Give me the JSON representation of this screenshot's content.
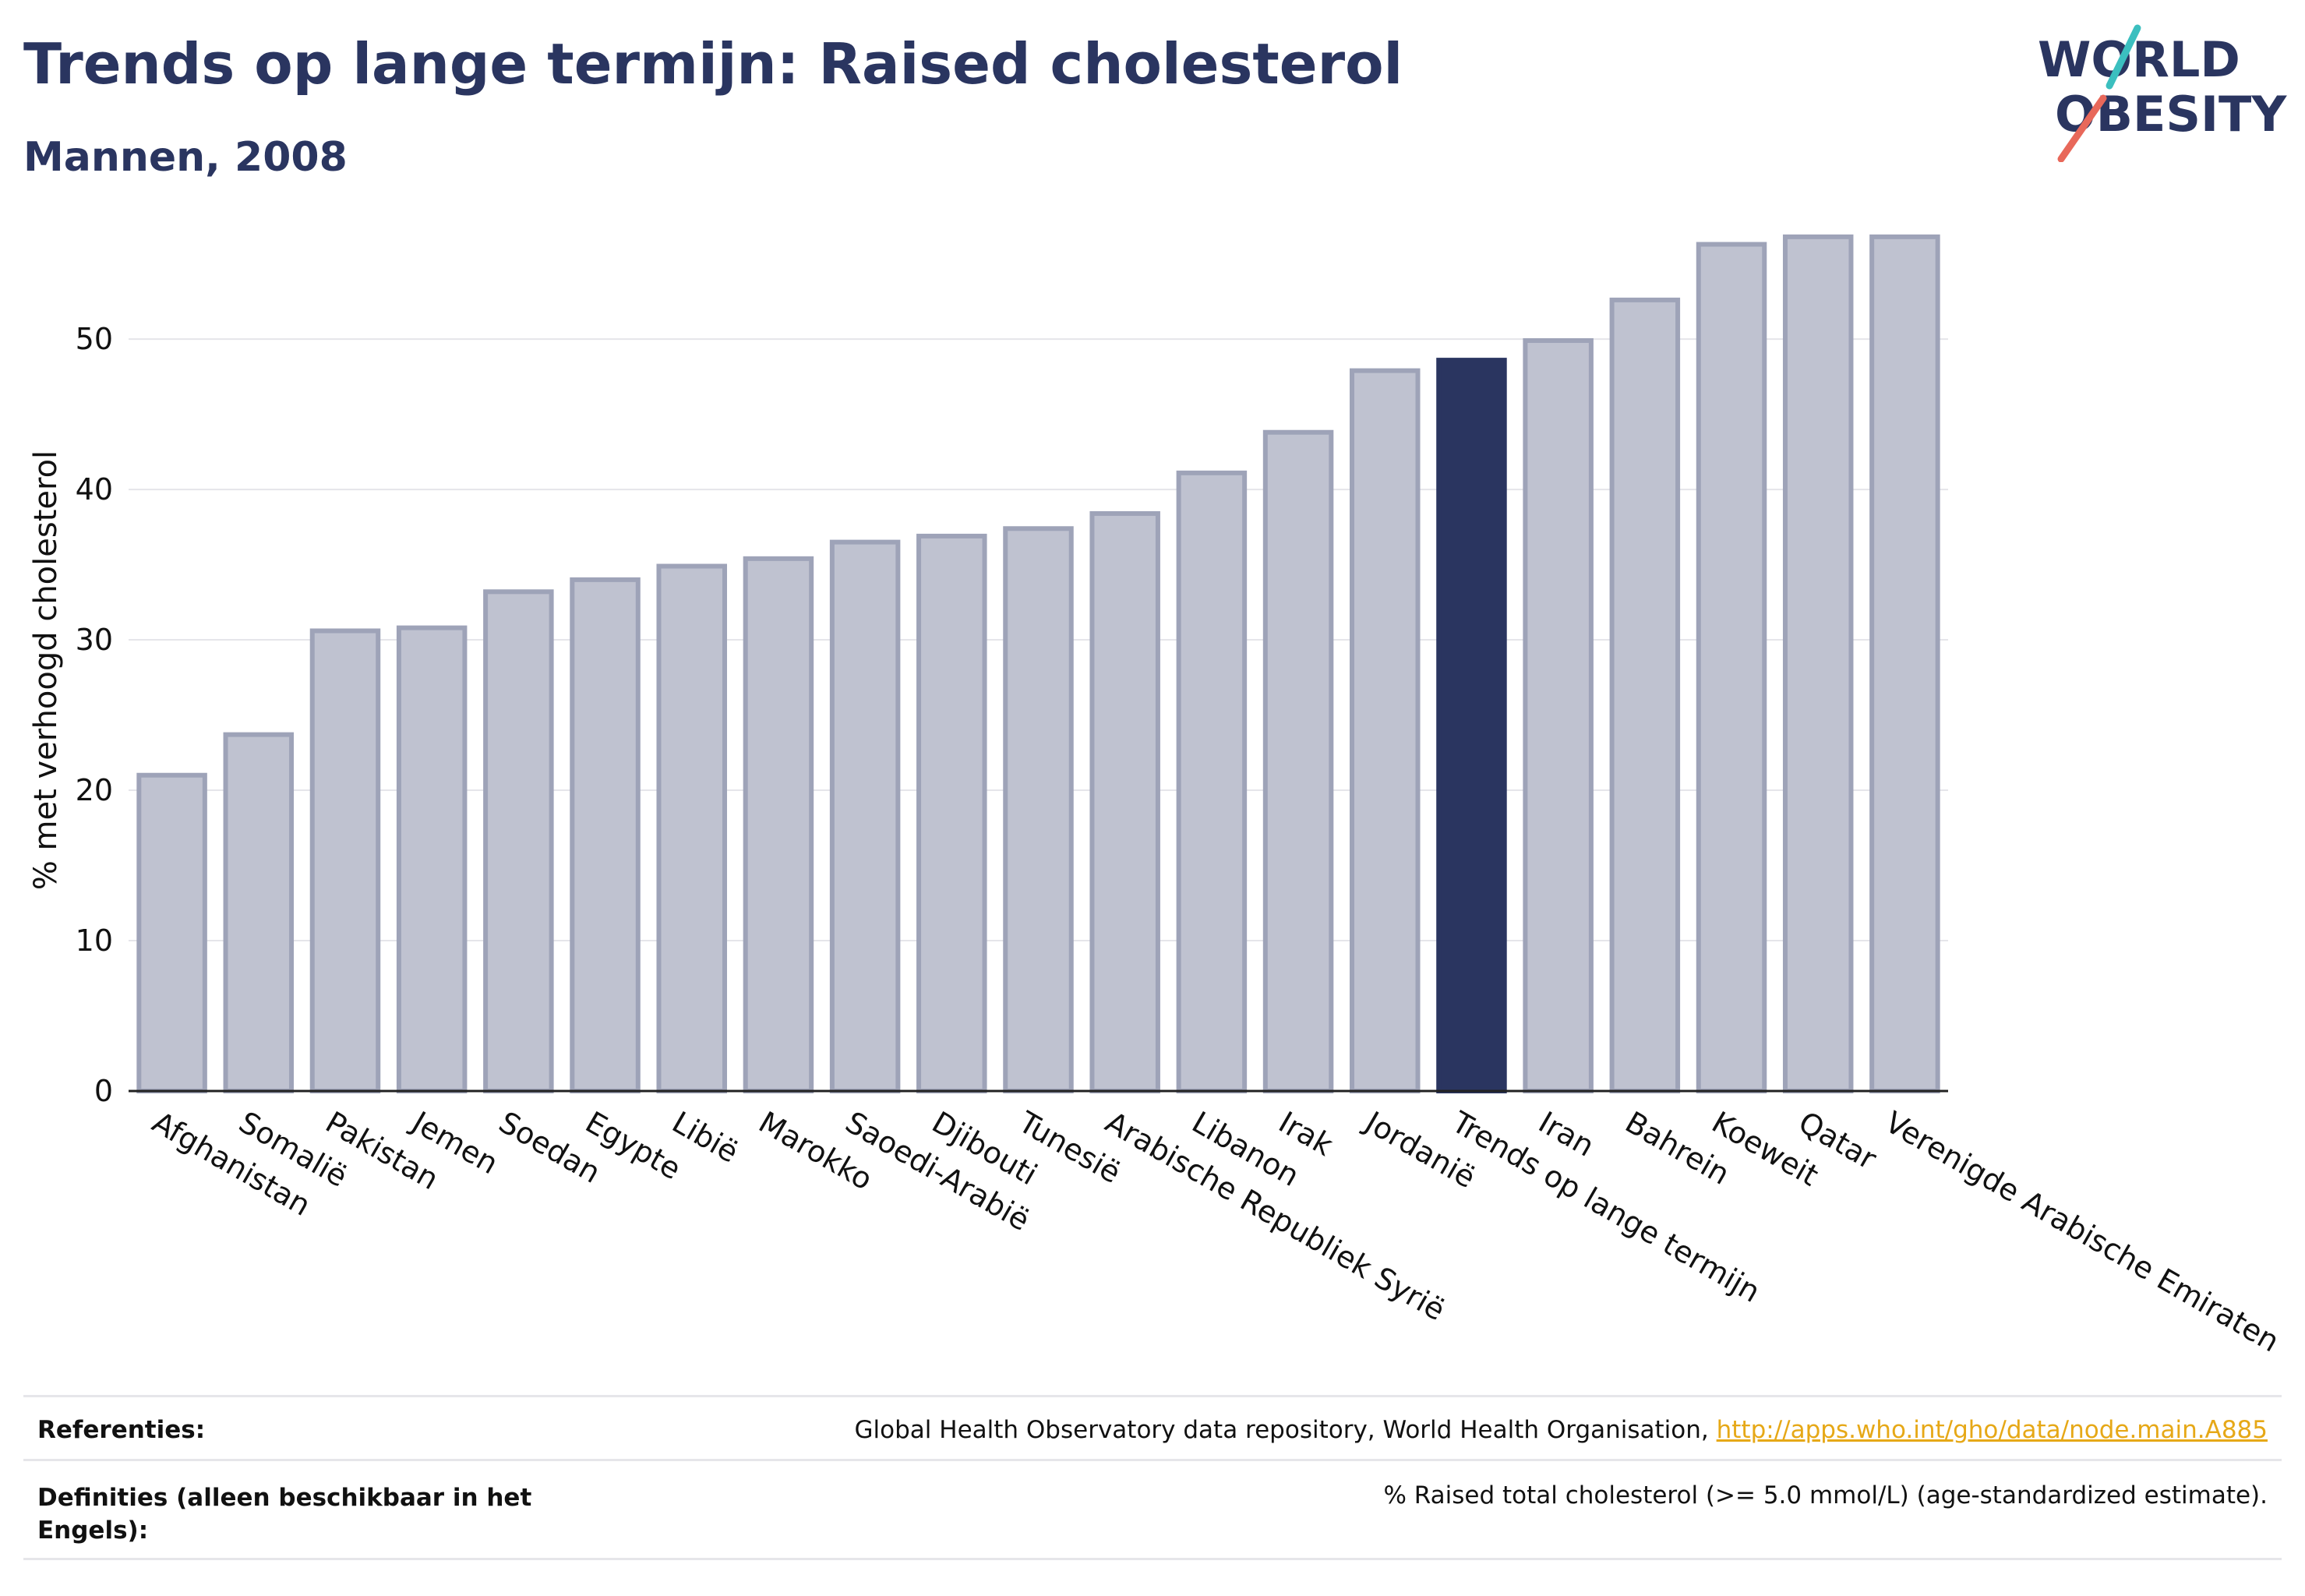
{
  "header": {
    "title": "Trends op lange termijn: Raised cholesterol",
    "subtitle": "Mannen, 2008"
  },
  "logo": {
    "line1": "WORLD",
    "line2": "OBESITY"
  },
  "colors": {
    "highlight": "#2a3560",
    "bar_fill": "#bfc2d0",
    "bar_stroke": "#9ea3b8",
    "logo_accent_teal": "#3bbfbf",
    "logo_accent_red": "#e8685a",
    "link": "#e6a817"
  },
  "chart_data": {
    "type": "bar",
    "title": "Trends op lange termijn: Raised cholesterol",
    "subtitle": "Mannen, 2008",
    "xlabel": "",
    "ylabel": "% met verhoogd cholesterol",
    "ylim": [
      0,
      57
    ],
    "yticks": [
      0,
      10,
      20,
      30,
      40,
      50
    ],
    "grid": true,
    "highlight_category": "Trends op lange termijn",
    "categories": [
      "Afghanistan",
      "Somalië",
      "Pakistan",
      "Jemen",
      "Soedan",
      "Egypte",
      "Libië",
      "Marokko",
      "Saoedi-Arabië",
      "Djibouti",
      "Tunesië",
      "Arabische Republiek Syrië",
      "Libanon",
      "Irak",
      "Jordanië",
      "Trends op lange termijn",
      "Iran",
      "Bahrein",
      "Koeweit",
      "Qatar",
      "Verenigde Arabische Emiraten"
    ],
    "values": [
      21.0,
      23.7,
      30.6,
      30.8,
      33.2,
      34.0,
      34.9,
      35.4,
      36.5,
      36.9,
      37.4,
      38.4,
      41.1,
      43.8,
      47.9,
      48.6,
      49.9,
      52.6,
      56.3,
      56.8,
      56.8
    ]
  },
  "footer": {
    "references_label": "Referenties:",
    "references_text": "Global Health Observatory data repository, World Health Organisation, ",
    "references_link": "http://apps.who.int/gho/data/node.main.A885",
    "definitions_label": "Definities (alleen beschikbaar in het Engels):",
    "definitions_text": "% Raised total cholesterol (>= 5.0 mmol/L) (age-standardized estimate)."
  }
}
